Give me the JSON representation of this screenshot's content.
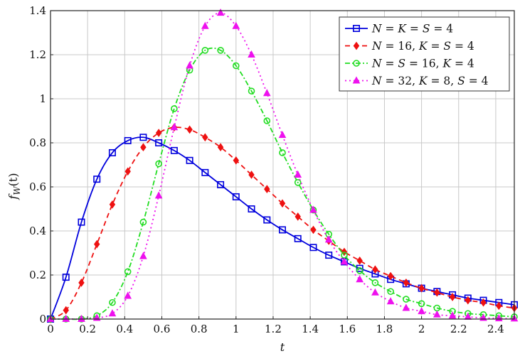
{
  "chart_data": {
    "type": "line",
    "title": "",
    "xlabel": "t",
    "ylabel": "f_W(t)",
    "xlim": [
      0,
      2.5
    ],
    "ylim": [
      0,
      1.4
    ],
    "grid": true,
    "legend_position": "upper right",
    "xticks": [
      "0",
      "0.2",
      "0.4",
      "0.6",
      "0.8",
      "1",
      "1.2",
      "1.4",
      "1.6",
      "1.8",
      "2",
      "2.2",
      "2.4"
    ],
    "yticks": [
      "0",
      "0.2",
      "0.4",
      "0.6",
      "0.8",
      "1",
      "1.2",
      "1.4"
    ],
    "x": [
      0,
      0.0833,
      0.1667,
      0.25,
      0.3333,
      0.4167,
      0.5,
      0.5833,
      0.6667,
      0.75,
      0.8333,
      0.9167,
      1.0,
      1.0833,
      1.1667,
      1.25,
      1.3333,
      1.4167,
      1.5,
      1.5833,
      1.6667,
      1.75,
      1.8333,
      1.9167,
      2.0,
      2.0833,
      2.1667,
      2.25,
      2.3333,
      2.4167,
      2.5
    ],
    "series": [
      {
        "name": "N = K = S = 4",
        "color": "#0000dd",
        "dash": "",
        "marker": "square",
        "values": [
          0,
          0.19,
          0.44,
          0.635,
          0.755,
          0.81,
          0.825,
          0.8,
          0.765,
          0.72,
          0.665,
          0.61,
          0.555,
          0.5,
          0.45,
          0.405,
          0.365,
          0.325,
          0.29,
          0.26,
          0.23,
          0.205,
          0.18,
          0.16,
          0.14,
          0.125,
          0.11,
          0.095,
          0.085,
          0.075,
          0.065
        ]
      },
      {
        "name": "N = 16, K = S = 4",
        "color": "#ee1111",
        "dash": "7,5",
        "marker": "diamond",
        "values": [
          0,
          0.04,
          0.165,
          0.34,
          0.52,
          0.67,
          0.78,
          0.845,
          0.87,
          0.86,
          0.825,
          0.78,
          0.72,
          0.655,
          0.59,
          0.525,
          0.465,
          0.405,
          0.355,
          0.305,
          0.265,
          0.225,
          0.195,
          0.165,
          0.14,
          0.12,
          0.1,
          0.085,
          0.075,
          0.06,
          0.05
        ]
      },
      {
        "name": "N = S = 16, K = 4",
        "color": "#22dd22",
        "dash": "7,3,2,3",
        "marker": "circle",
        "values": [
          0,
          0,
          0,
          0.015,
          0.075,
          0.215,
          0.44,
          0.705,
          0.955,
          1.13,
          1.22,
          1.22,
          1.15,
          1.035,
          0.9,
          0.755,
          0.62,
          0.495,
          0.385,
          0.29,
          0.22,
          0.165,
          0.125,
          0.09,
          0.07,
          0.05,
          0.035,
          0.025,
          0.02,
          0.015,
          0.01
        ]
      },
      {
        "name": "N = 32, K = 8, S = 4",
        "color": "#ee11ee",
        "dash": "2,4",
        "marker": "triangle",
        "values": [
          0,
          0,
          0,
          0.005,
          0.025,
          0.105,
          0.285,
          0.56,
          0.87,
          1.15,
          1.33,
          1.39,
          1.33,
          1.2,
          1.025,
          0.835,
          0.655,
          0.495,
          0.36,
          0.26,
          0.18,
          0.12,
          0.08,
          0.05,
          0.035,
          0.02,
          0.015,
          0.01,
          0.005,
          0.003,
          0.002
        ]
      }
    ]
  },
  "legend": {
    "items": [
      {
        "pre": "N",
        "text": " = K = S = 4"
      },
      {
        "pre": "N",
        "text": " = 16, K = S = 4"
      },
      {
        "pre": "N",
        "text": " = S = 16, K = 4"
      },
      {
        "pre": "N",
        "text": " = 32, K = 8, S = 4"
      }
    ]
  },
  "labels": {
    "x": "t",
    "y_main": "f",
    "y_sub": "W",
    "y_arg": "(t)"
  }
}
